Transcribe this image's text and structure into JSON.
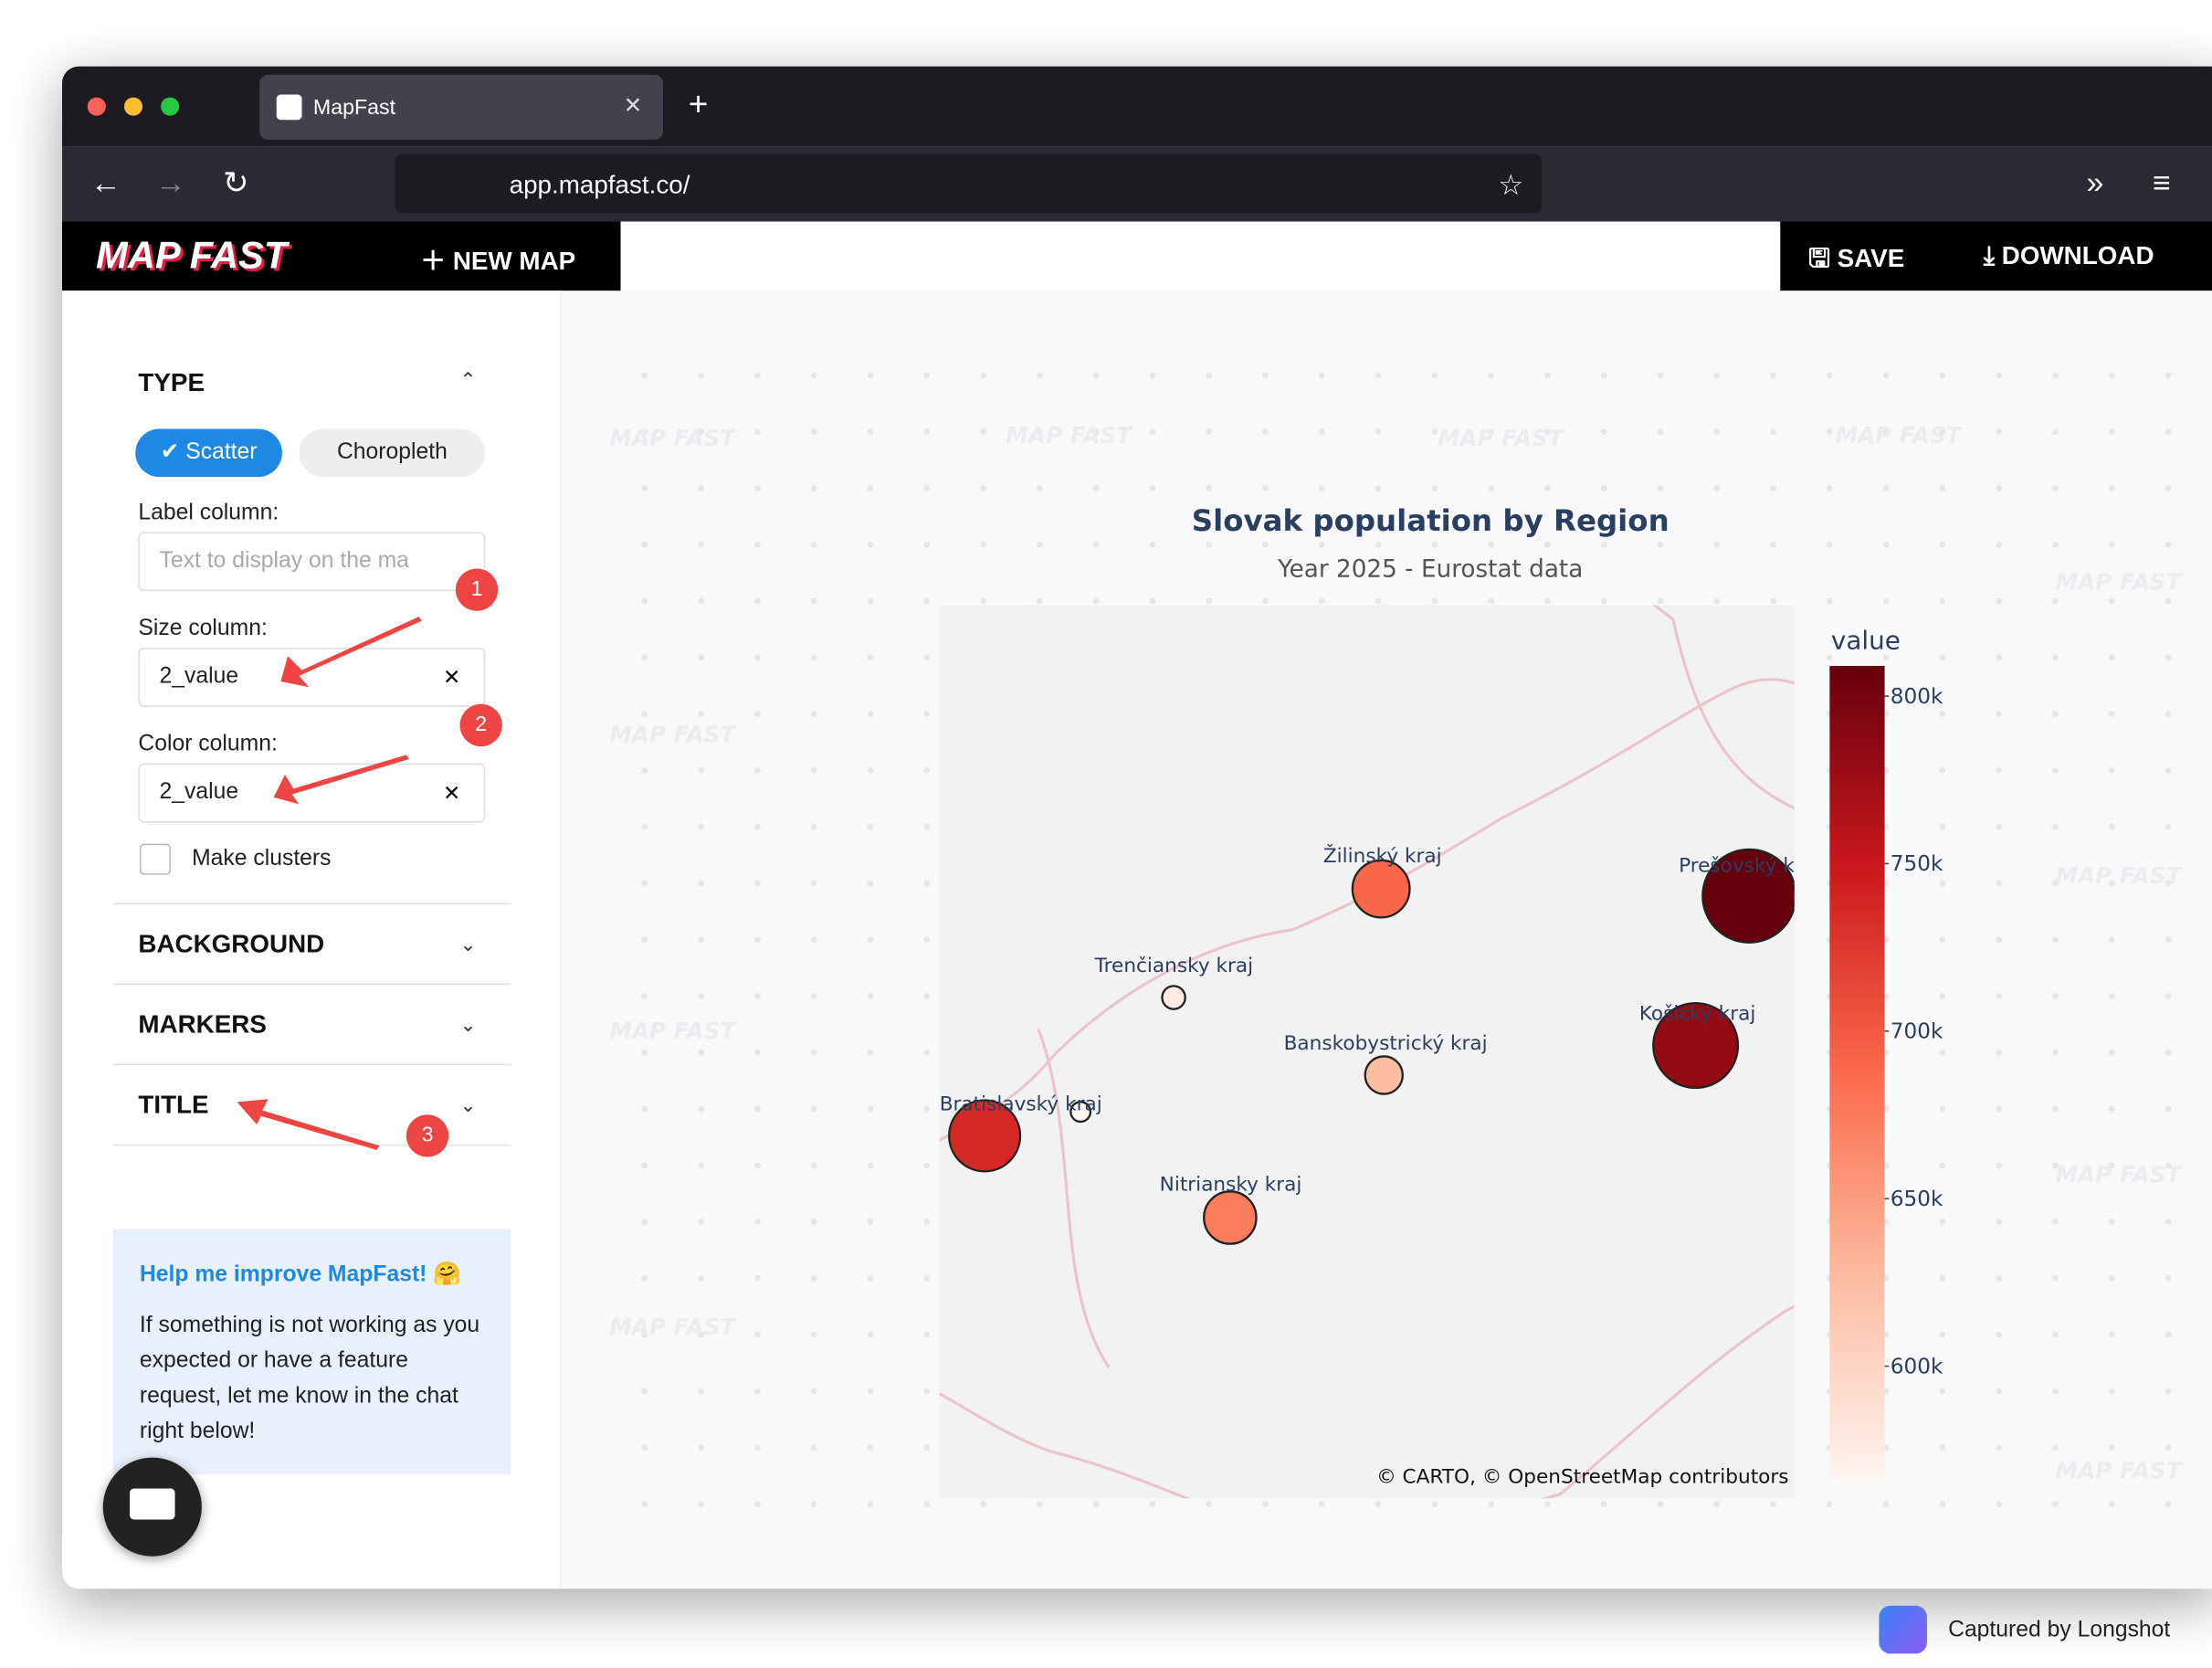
{
  "browser": {
    "tab_title": "MapFast",
    "url_host": "app.mapfast.co/"
  },
  "app": {
    "logo": "MAP FAST",
    "new_map": "NEW MAP",
    "save": "SAVE",
    "download": "DOWNLOAD"
  },
  "sidebar": {
    "type_section": "TYPE",
    "type_options": [
      "Scatter",
      "Choropleth"
    ],
    "label_column": {
      "label": "Label column:",
      "placeholder": "Text to display on the ma"
    },
    "size_column": {
      "label": "Size column:",
      "value": "2_value"
    },
    "color_column": {
      "label": "Color column:",
      "value": "2_value"
    },
    "make_clusters": "Make clusters",
    "sections": [
      "BACKGROUND",
      "MARKERS",
      "TITLE"
    ],
    "help": {
      "title": "Help me improve MapFast! 🤗",
      "body": "If something is not working as you expected or have a feature request, let me know in the chat right below!"
    }
  },
  "annotations": [
    "1",
    "2",
    "3"
  ],
  "watermark": "MAP FAST",
  "chart_data": {
    "type": "scatter_map",
    "title": "Slovak population by Region",
    "subtitle": "Year 2025 - Eurostat data",
    "categories": [
      "Prešovský kraj",
      "Košický kraj",
      "Bratislavský kraj",
      "Žilinský kraj",
      "Nitriansky kraj",
      "Banskobystrický kraj",
      "Trenčiansky kraj",
      null
    ],
    "values": [
      809000,
      781000,
      736000,
      690000,
      674000,
      625000,
      577000,
      566000
    ],
    "colorbar_title": "value",
    "ylim": [
      566000,
      809000
    ],
    "yticks": [
      {
        "value": 600000,
        "label": "600k"
      },
      {
        "value": 650000,
        "label": "650k"
      },
      {
        "value": 700000,
        "label": "700k"
      },
      {
        "value": 750000,
        "label": "750k"
      },
      {
        "value": 800000,
        "label": "800k"
      }
    ],
    "colorscale": [
      "#fff5f0",
      "#fcbba1",
      "#fb6a4a",
      "#cb181d",
      "#67000d"
    ],
    "attribution": "© CARTO, © OpenStreetMap contributors"
  },
  "footer": {
    "captured": "Captured by Longshot"
  }
}
